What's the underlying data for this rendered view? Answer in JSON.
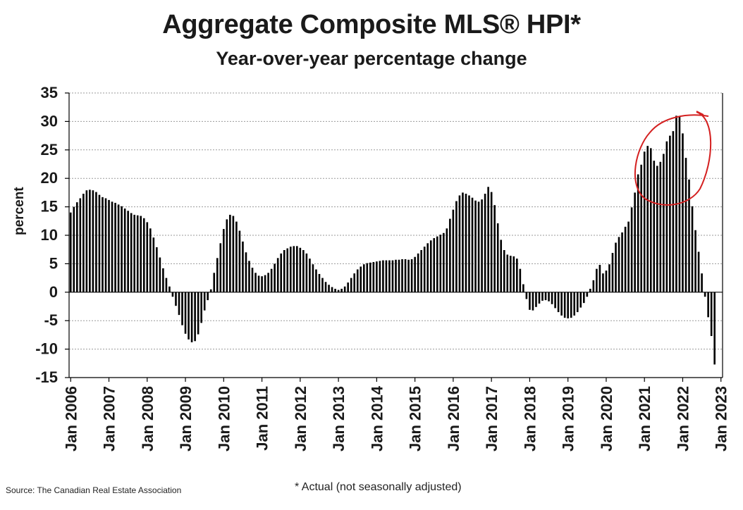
{
  "header": {
    "title": "Aggregate Composite MLS® HPI*",
    "subtitle": "Year-over-year percentage change"
  },
  "footer": {
    "source": "Source: The Canadian Real Estate Association",
    "footnote": "* Actual (not seasonally adjusted)"
  },
  "annotation": {
    "type": "hand-drawn circle",
    "color": "#d42020",
    "around": "2021-2022 peak"
  },
  "chart_data": {
    "type": "bar",
    "title": "Aggregate Composite MLS® HPI*",
    "subtitle": "Year-over-year percentage change",
    "xlabel": "",
    "ylabel": "percent",
    "ylim": [
      -15,
      35
    ],
    "ytick_step": 5,
    "yticks": [
      "35",
      "30",
      "25",
      "20",
      "15",
      "10",
      "5",
      "0",
      "-5",
      "-10",
      "-15"
    ],
    "x_tick_labels": [
      "Jan 2006",
      "Jan 2007",
      "Jan 2008",
      "Jan 2009",
      "Jan 2010",
      "Jan 2011",
      "Jan 2012",
      "Jan 2013",
      "Jan 2014",
      "Jan 2015",
      "Jan 2016",
      "Jan 2017",
      "Jan 2018",
      "Jan 2019",
      "Jan 2020",
      "Jan 2021",
      "Jan 2022",
      "Jan 2023"
    ],
    "grid": "horizontal, dotted",
    "bar_color": "#000000",
    "start": "Jan 2006",
    "frequency": "monthly",
    "values": [
      14.0,
      15.0,
      15.8,
      16.5,
      17.3,
      17.9,
      18.0,
      17.9,
      17.6,
      17.1,
      16.7,
      16.5,
      16.2,
      15.9,
      15.7,
      15.4,
      15.1,
      14.7,
      14.3,
      13.9,
      13.6,
      13.5,
      13.4,
      13.0,
      12.3,
      11.2,
      9.6,
      7.9,
      6.1,
      4.2,
      2.5,
      1.0,
      -0.8,
      -2.4,
      -4.0,
      -5.8,
      -7.3,
      -8.3,
      -8.8,
      -8.6,
      -7.4,
      -5.4,
      -3.2,
      -1.4,
      0.5,
      3.4,
      6.0,
      8.6,
      11.1,
      12.8,
      13.6,
      13.4,
      12.4,
      10.8,
      8.9,
      7.0,
      5.5,
      4.3,
      3.4,
      2.9,
      2.8,
      3.0,
      3.4,
      4.1,
      5.0,
      6.0,
      6.8,
      7.4,
      7.7,
      8.0,
      8.1,
      8.1,
      7.8,
      7.4,
      6.8,
      5.9,
      4.9,
      4.0,
      3.2,
      2.5,
      1.8,
      1.3,
      0.9,
      0.6,
      0.4,
      0.6,
      1.0,
      1.7,
      2.5,
      3.3,
      4.0,
      4.5,
      4.9,
      5.1,
      5.2,
      5.3,
      5.4,
      5.5,
      5.6,
      5.6,
      5.6,
      5.6,
      5.7,
      5.7,
      5.8,
      5.8,
      5.7,
      5.8,
      6.2,
      6.8,
      7.4,
      8.0,
      8.6,
      9.1,
      9.5,
      9.8,
      10.1,
      10.4,
      11.2,
      12.9,
      14.5,
      16.0,
      17.0,
      17.5,
      17.3,
      17.0,
      16.6,
      16.1,
      15.9,
      16.3,
      17.3,
      18.5,
      17.6,
      15.3,
      12.1,
      9.2,
      7.4,
      6.6,
      6.4,
      6.3,
      5.9,
      4.1,
      1.4,
      -1.2,
      -3.1,
      -3.2,
      -2.6,
      -2.0,
      -1.5,
      -1.4,
      -1.6,
      -2.1,
      -2.8,
      -3.5,
      -4.1,
      -4.5,
      -4.6,
      -4.5,
      -4.1,
      -3.5,
      -2.7,
      -1.9,
      -0.8,
      0.6,
      2.1,
      4.1,
      4.8,
      3.3,
      3.8,
      4.9,
      6.9,
      8.7,
      9.7,
      10.5,
      11.5,
      12.4,
      14.9,
      17.5,
      20.7,
      22.4,
      24.7,
      25.7,
      25.3,
      23.1,
      22.2,
      22.9,
      24.3,
      26.5,
      27.5,
      28.3,
      31.0,
      30.8,
      27.9,
      23.6,
      19.8,
      15.1,
      10.9,
      7.1,
      3.3,
      -0.8,
      -4.4,
      -7.7,
      -12.7
    ]
  }
}
